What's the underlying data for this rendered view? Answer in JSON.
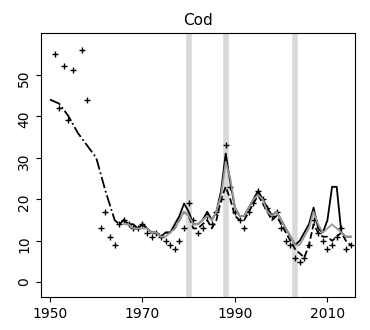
{
  "chart_data": {
    "type": "line",
    "title": "Cod",
    "xlim": [
      1948,
      2016
    ],
    "ylim": [
      -3.5,
      60
    ],
    "xticks": [
      1950,
      1970,
      1990,
      2010
    ],
    "yticks": [
      0,
      10,
      20,
      30,
      40,
      50
    ],
    "vertical_lines": [
      1980,
      1988,
      2003
    ],
    "series": [
      {
        "color": "#000000",
        "marker": "plus",
        "line_style": "none",
        "x": [
          1951,
          1952,
          1953,
          1954,
          1955,
          1957,
          1958,
          1961,
          1962,
          1963,
          1964,
          1965,
          1966,
          1967,
          1968,
          1969,
          1970,
          1971,
          1972,
          1973,
          1974,
          1975,
          1976,
          1977,
          1978,
          1979,
          1980,
          1981,
          1982,
          1983,
          1984,
          1985,
          1986,
          1987,
          1988,
          1989,
          1990,
          1991,
          1992,
          1993,
          1994,
          1995,
          1996,
          1997,
          1998,
          1999,
          2000,
          2001,
          2002,
          2003,
          2004,
          2005,
          2006,
          2007,
          2008,
          2009,
          2010,
          2011,
          2012,
          2013,
          2014,
          2015
        ],
        "values": [
          55,
          42,
          52,
          39,
          51,
          56,
          44,
          13,
          17,
          11,
          9,
          14,
          15,
          14,
          13,
          13,
          14,
          12,
          11,
          12,
          11,
          10,
          9,
          8,
          10,
          13,
          19,
          15,
          12,
          13,
          16,
          14,
          17,
          20,
          33,
          23,
          17,
          15,
          13,
          17,
          19,
          22,
          20,
          18,
          16,
          17,
          13,
          10,
          9,
          6,
          5,
          6,
          9,
          15,
          12,
          10,
          8,
          9,
          11,
          13,
          8,
          9
        ]
      },
      {
        "color": "#000000",
        "marker": "none",
        "line_style": "dashdot",
        "x": [
          1950,
          1952,
          1954,
          1956,
          1958,
          1960,
          1962,
          1964,
          1965
        ],
        "values": [
          44,
          43,
          40,
          36,
          33,
          30,
          22,
          15,
          14
        ]
      },
      {
        "color": "#000000",
        "marker": "none",
        "line_style": "dashed",
        "x": [
          1965,
          1966,
          1967,
          1968,
          1969,
          1970,
          1971,
          1972,
          1973,
          1974,
          1975,
          1976,
          1977,
          1978,
          1979,
          1980,
          1981,
          1982,
          1983,
          1984,
          1985,
          1986,
          1987,
          1988,
          1989,
          1990,
          1991,
          1992,
          1993,
          1994,
          1995,
          1996,
          1997,
          1998,
          1999,
          2000,
          2001,
          2002,
          2003,
          2004,
          2005,
          2006,
          2007,
          2008,
          2009,
          2010,
          2011,
          2012,
          2013,
          2014,
          2015
        ],
        "values": [
          14,
          15,
          14,
          13,
          13,
          14,
          13,
          12,
          12,
          11,
          12,
          12,
          13,
          15,
          17,
          16,
          13,
          13,
          14,
          15,
          13,
          15,
          20,
          23,
          20,
          16,
          15,
          15,
          17,
          19,
          21,
          19,
          17,
          15,
          16,
          14,
          12,
          10,
          8,
          7,
          6,
          9,
          14,
          12,
          11,
          11,
          10,
          11,
          12,
          10,
          9
        ]
      },
      {
        "color": "#000000",
        "marker": "none",
        "line_style": "solid",
        "x": [
          1966,
          1967,
          1968,
          1969,
          1970,
          1971,
          1972,
          1973,
          1974,
          1975,
          1976,
          1977,
          1978,
          1979,
          1980,
          1981,
          1982,
          1983,
          1984,
          1985,
          1986,
          1987,
          1988,
          1989,
          1990,
          1991,
          1992,
          1993,
          1994,
          1995,
          1996,
          1997,
          1998,
          1999,
          2000,
          2001,
          2002,
          2003,
          2004,
          2005,
          2006,
          2007,
          2008,
          2009,
          2010,
          2011,
          2012,
          2013,
          2014,
          2015
        ],
        "values": [
          15,
          14,
          14,
          13,
          14,
          13,
          12,
          12,
          11,
          12,
          12,
          14,
          16,
          19,
          17,
          14,
          14,
          15,
          17,
          15,
          17,
          22,
          31,
          24,
          18,
          16,
          16,
          18,
          20,
          22,
          20,
          18,
          16,
          17,
          15,
          13,
          11,
          9,
          10,
          12,
          14,
          18,
          13,
          12,
          15,
          23,
          23,
          12,
          11,
          11
        ]
      },
      {
        "color": "#999999",
        "marker": "none",
        "line_style": "solid",
        "x": [
          1966,
          1967,
          1968,
          1969,
          1970,
          1971,
          1972,
          1973,
          1974,
          1975,
          1976,
          1977,
          1978,
          1979,
          1980,
          1981,
          1982,
          1983,
          1984,
          1985,
          1986,
          1987,
          1988,
          1989,
          1990,
          1991,
          1992,
          1993,
          1994,
          1995,
          1996,
          1997,
          1998,
          1999,
          2000,
          2001,
          2002,
          2003,
          2004,
          2005,
          2006,
          2007,
          2008,
          2009,
          2010,
          2011,
          2012,
          2013,
          2014,
          2015
        ],
        "values": [
          14,
          14,
          13,
          13,
          13,
          13,
          12,
          12,
          11,
          11,
          12,
          13,
          15,
          17,
          16,
          14,
          14,
          15,
          16,
          15,
          17,
          21,
          29,
          25,
          18,
          16,
          16,
          18,
          20,
          21,
          20,
          17,
          16,
          17,
          15,
          13,
          11,
          9,
          9,
          11,
          13,
          17,
          14,
          12,
          13,
          14,
          13,
          12,
          11,
          11
        ]
      }
    ]
  }
}
